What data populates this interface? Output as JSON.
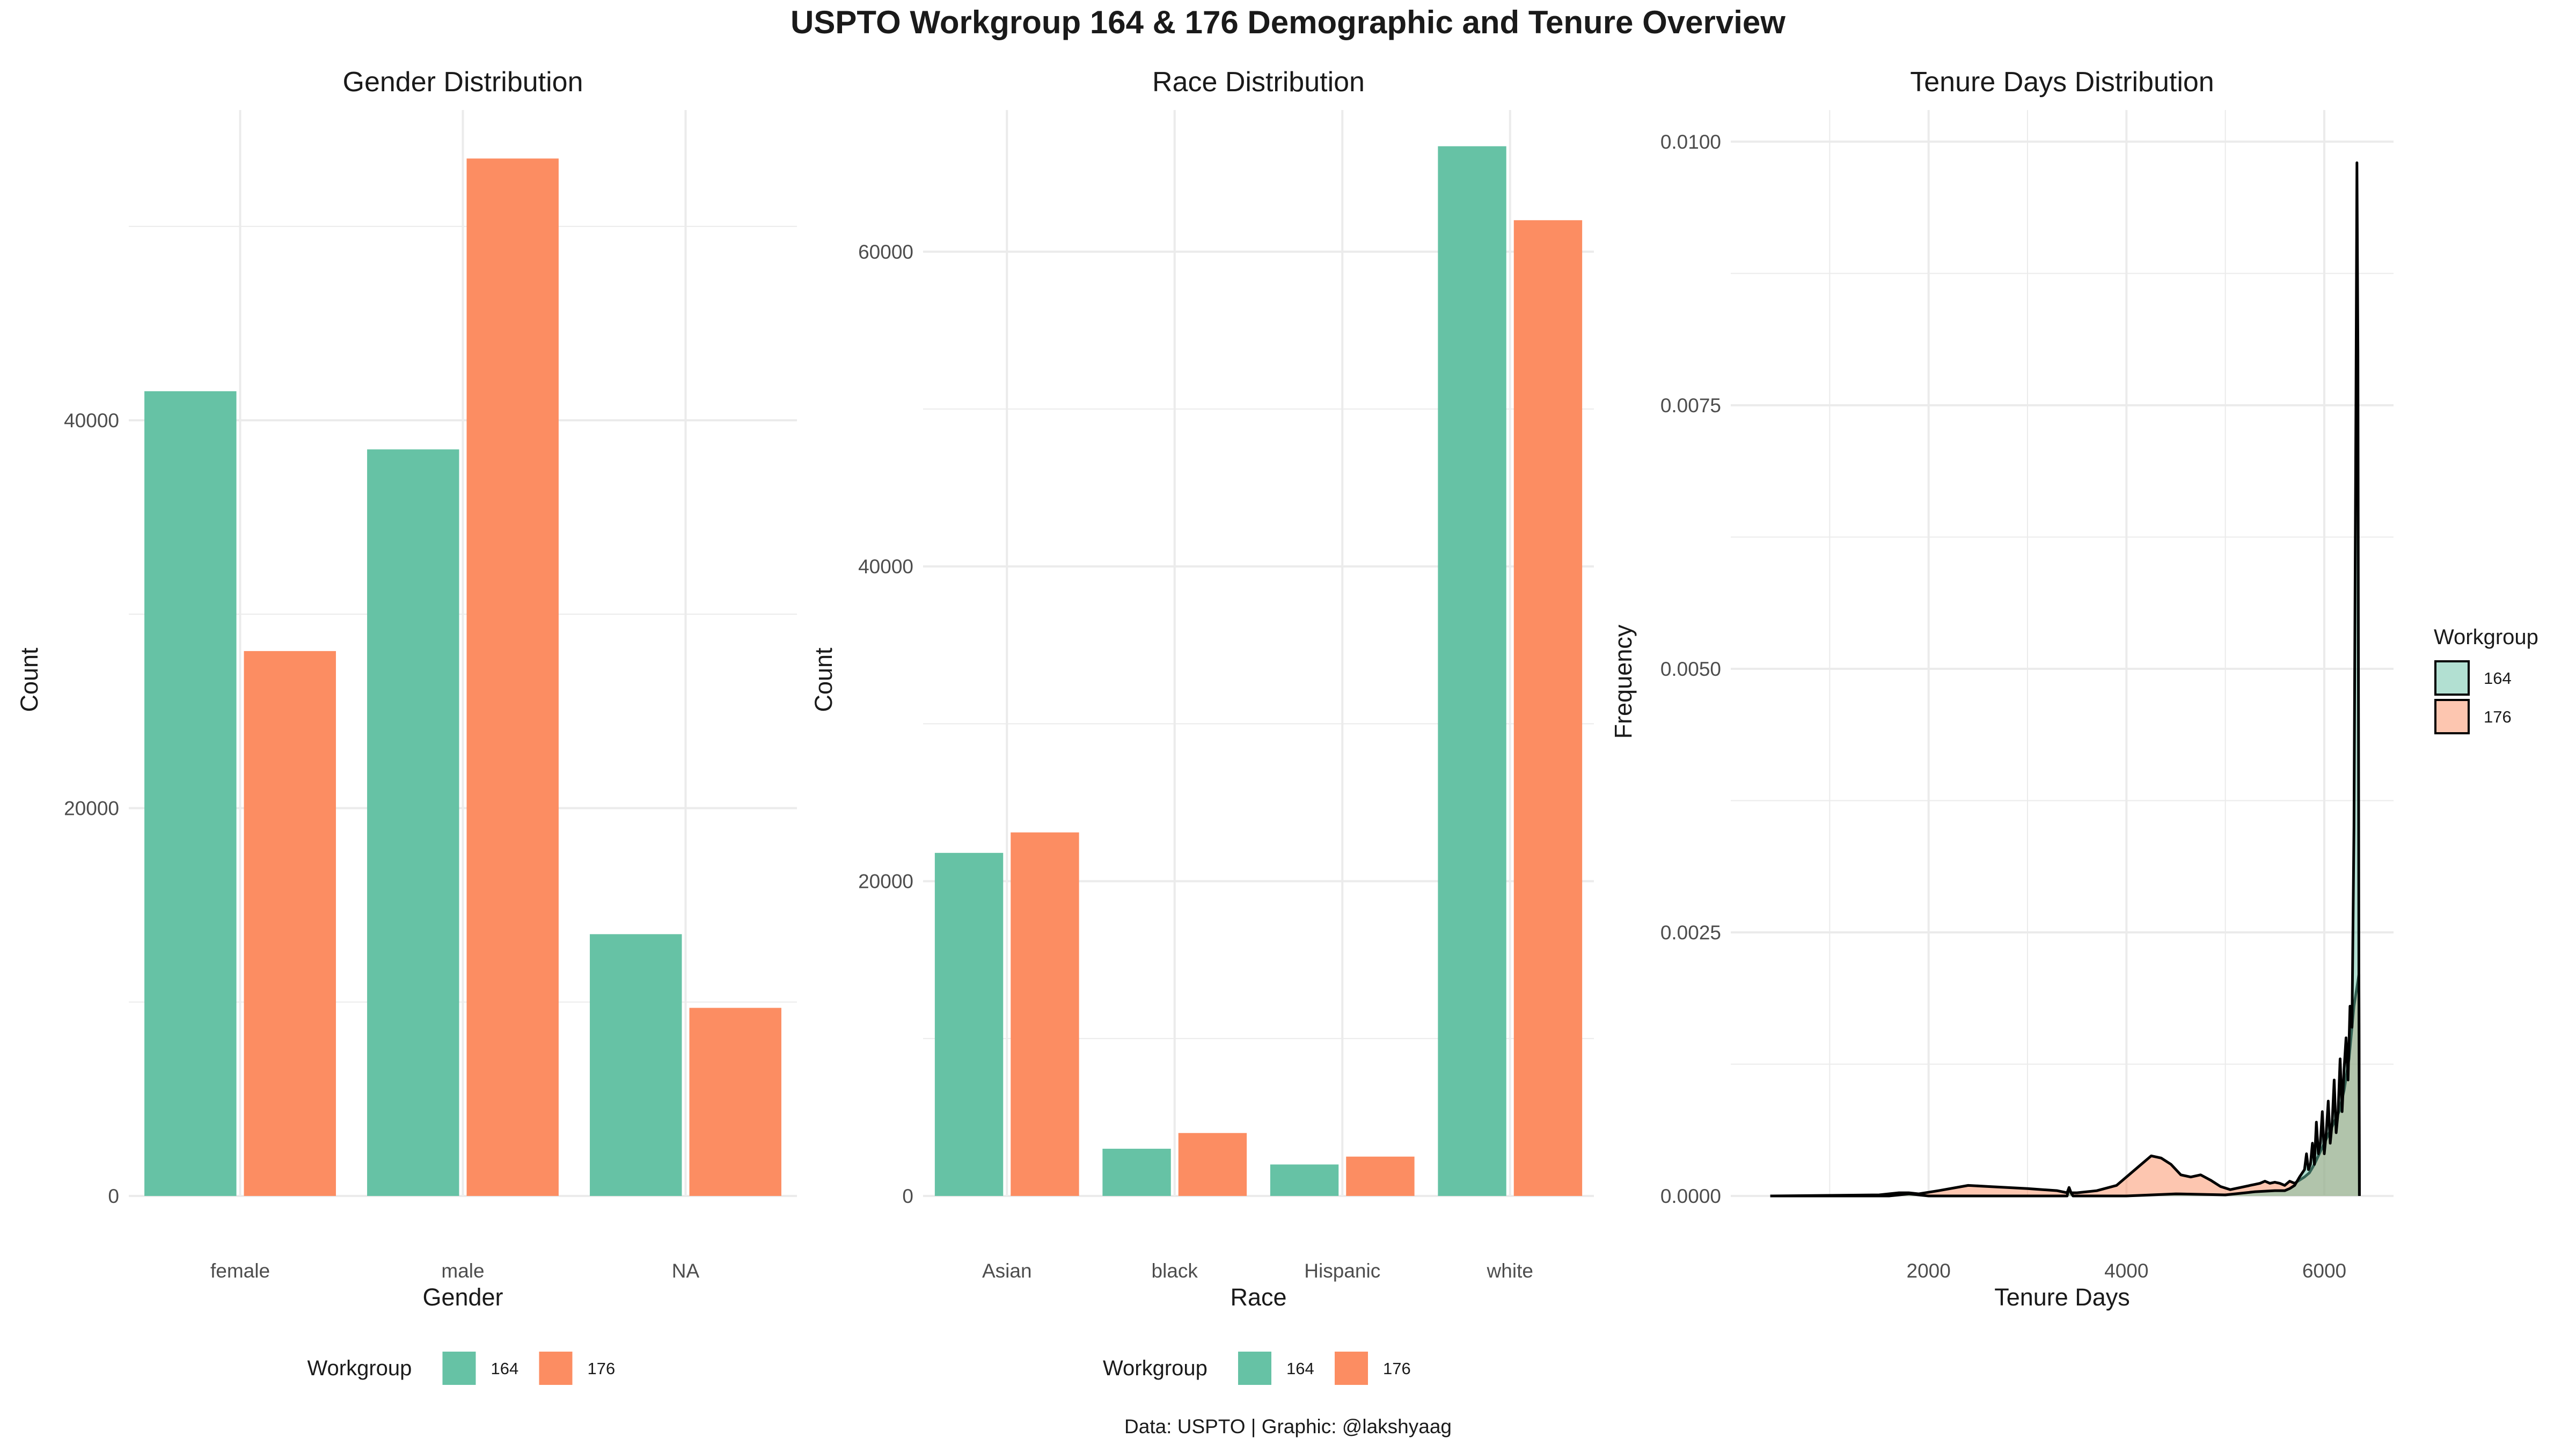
{
  "title": "USPTO Workgroup 164 & 176 Demographic and Tenure Overview",
  "caption": "Data: USPTO | Graphic: @lakshyaag",
  "colors": {
    "wg164": "#66C2A5",
    "wg176": "#FC8D62",
    "grid": "#EBEBEB",
    "axis_text": "#4D4D4D",
    "text": "#1A1A1A",
    "density_line": "#000000"
  },
  "chart_data": [
    {
      "type": "bar",
      "title": "Gender Distribution",
      "xlabel": "Gender",
      "ylabel": "Count",
      "categories": [
        "female",
        "male",
        "NA"
      ],
      "series": [
        {
          "name": "164",
          "values": [
            41500,
            38500,
            13500
          ]
        },
        {
          "name": "176",
          "values": [
            28100,
            53500,
            9700
          ]
        }
      ],
      "ylim": [
        0,
        56000
      ],
      "yticks": [
        0,
        20000,
        40000
      ],
      "grid": true,
      "legend": {
        "title": "Workgroup",
        "position": "bottom"
      }
    },
    {
      "type": "bar",
      "title": "Race Distribution",
      "xlabel": "Race",
      "ylabel": "Count",
      "categories": [
        "Asian",
        "black",
        "Hispanic",
        "white"
      ],
      "series": [
        {
          "name": "164",
          "values": [
            21800,
            3000,
            2000,
            66700
          ]
        },
        {
          "name": "176",
          "values": [
            23100,
            4000,
            2500,
            62000
          ]
        }
      ],
      "ylim": [
        0,
        69000
      ],
      "yticks": [
        0,
        20000,
        40000,
        60000
      ],
      "grid": true,
      "legend": {
        "title": "Workgroup",
        "position": "bottom"
      }
    },
    {
      "type": "area",
      "title": "Tenure Days Distribution",
      "xlabel": "Tenure Days",
      "ylabel": "Frequency",
      "xlim": [
        0,
        6700
      ],
      "ylim": [
        0,
        0.0103
      ],
      "xticks": [
        2000,
        4000,
        6000
      ],
      "yticks": [
        0,
        0.0025,
        0.005,
        0.0075,
        0.01
      ],
      "ytick_labels": [
        "0.0000",
        "0.0025",
        "0.0050",
        "0.0075",
        "0.0100"
      ],
      "grid": true,
      "legend": {
        "title": "Workgroup",
        "position": "right"
      },
      "series": [
        {
          "name": "164",
          "x": [
            400,
            1600,
            1800,
            2000,
            3000,
            3400,
            3420,
            3440,
            3460,
            4000,
            4500,
            5000,
            5300,
            5500,
            5600,
            5650,
            5700,
            5750,
            5800,
            5820,
            5840,
            5860,
            5880,
            5900,
            5920,
            5940,
            5960,
            5980,
            6000,
            6020,
            6040,
            6060,
            6080,
            6100,
            6120,
            6140,
            6160,
            6180,
            6200,
            6220,
            6240,
            6260,
            6280,
            6300,
            6310,
            6320,
            6330,
            6340,
            6350,
            6355
          ],
          "y": [
            0,
            0,
            2e-05,
            0,
            0,
            0,
            8e-05,
            3e-05,
            0,
            0,
            2e-05,
            1e-05,
            4e-05,
            5e-05,
            5e-05,
            7e-05,
            0.0001,
            0.00018,
            0.00025,
            0.0004,
            0.00025,
            0.0003,
            0.0005,
            0.0003,
            0.0007,
            0.0004,
            0.0005,
            0.0008,
            0.0004,
            0.0006,
            0.0009,
            0.0005,
            0.0007,
            0.0011,
            0.0006,
            0.0008,
            0.0013,
            0.0008,
            0.0012,
            0.0015,
            0.0011,
            0.0018,
            0.0016,
            0.0035,
            0.0055,
            0.0075,
            0.0098,
            0.008,
            0.002,
            0
          ]
        },
        {
          "name": "176",
          "x": [
            400,
            1500,
            1700,
            1800,
            1900,
            2100,
            2400,
            2600,
            3000,
            3300,
            3400,
            3420,
            3440,
            3500,
            3700,
            3900,
            4050,
            4150,
            4250,
            4350,
            4450,
            4550,
            4650,
            4750,
            4850,
            4950,
            5050,
            5150,
            5250,
            5300,
            5350,
            5400,
            5450,
            5500,
            5550,
            5600,
            5650,
            5700,
            5750,
            5800,
            5850,
            5900,
            5950,
            6000,
            6050,
            6100,
            6150,
            6200,
            6250,
            6300,
            6350,
            6355
          ],
          "y": [
            0,
            1e-05,
            3e-05,
            3e-05,
            2e-05,
            5e-05,
            0.0001,
            9e-05,
            7e-05,
            5e-05,
            3e-05,
            8e-05,
            3e-05,
            3e-05,
            5e-05,
            0.0001,
            0.00022,
            0.0003,
            0.00038,
            0.00036,
            0.0003,
            0.0002,
            0.00018,
            0.0002,
            0.00015,
            9e-05,
            6e-05,
            8e-05,
            0.0001,
            0.00011,
            0.00012,
            0.00014,
            0.00012,
            0.00013,
            0.00012,
            0.0001,
            0.00014,
            0.00012,
            0.00015,
            0.00018,
            0.00022,
            0.0003,
            0.0004,
            0.0005,
            0.0006,
            0.0007,
            0.0008,
            0.001,
            0.0013,
            0.0018,
            0.0021,
            0
          ]
        }
      ]
    }
  ]
}
